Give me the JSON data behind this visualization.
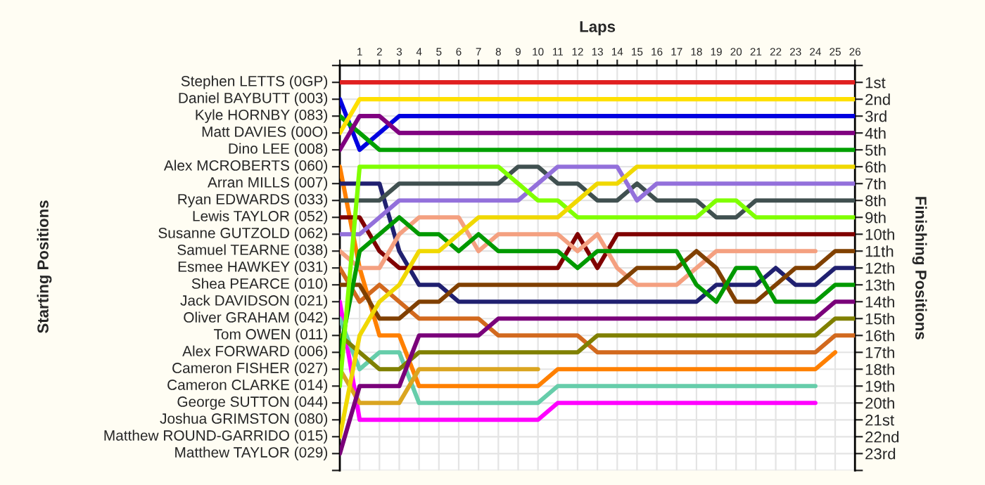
{
  "chart_data": {
    "type": "line",
    "xlabel": "Laps",
    "ylabel": "Finishing Positions",
    "annotations": [
      "Stephen LETTS (0GP)",
      "Daniel BAYBUTT (003)",
      "Kyle HORNBY (083)",
      "Matt DAVIES (00O)",
      "Dino LEE (008)",
      "Alex MCROBERTS (060)",
      "Arran MILLS (007)",
      "Ryan EDWARDS (033)",
      "Lewis TAYLOR (052)",
      "Susanne GUTZOLD (062)",
      "Samuel TEARNE (038)",
      "Esmee HAWKEY (031)",
      "Shea PEARCE (010)",
      "Jack DAVIDSON (021)",
      "Oliver GRAHAM (042)",
      "Tom OWEN (011)",
      "Alex FORWARD (006)",
      "Cameron FISHER (027)",
      "Cameron CLARKE (014)",
      "George SUTTON (044)",
      "Joshua GRIMSTON (080)",
      "Matthew ROUND-GARRIDO (015)",
      "Matthew TAYLOR (029)",
      "Starting Positions"
    ],
    "x": [
      0,
      1,
      2,
      3,
      4,
      5,
      6,
      7,
      8,
      9,
      10,
      11,
      12,
      13,
      14,
      15,
      16,
      17,
      18,
      19,
      20,
      21,
      22,
      23,
      24,
      25,
      26
    ],
    "xlim": [
      0,
      26
    ],
    "xticks": [
      {
        "value": 0,
        "label": null
      },
      1,
      2,
      3,
      4,
      5,
      6,
      7,
      8,
      9,
      10,
      11,
      12,
      13,
      14,
      15,
      16,
      17,
      18,
      19,
      20,
      21,
      22,
      23,
      24,
      25,
      26
    ],
    "ylim": [
      24,
      0
    ],
    "yticks": [
      {
        "value": 0,
        "label": null
      },
      {
        "value": 1,
        "label": "1st"
      },
      {
        "value": 2,
        "label": "2nd"
      },
      {
        "value": 3,
        "label": "3rd"
      },
      {
        "value": 4,
        "label": "4th"
      },
      {
        "value": 5,
        "label": "5th"
      },
      {
        "value": 6,
        "label": "6th"
      },
      {
        "value": 7,
        "label": "7th"
      },
      {
        "value": 8,
        "label": "8th"
      },
      {
        "value": 9,
        "label": "9th"
      },
      {
        "value": 10,
        "label": "10th"
      },
      {
        "value": 11,
        "label": "11th"
      },
      {
        "value": 12,
        "label": "12th"
      },
      {
        "value": 13,
        "label": "13th"
      },
      {
        "value": 14,
        "label": "14th"
      },
      {
        "value": 15,
        "label": "15th"
      },
      {
        "value": 16,
        "label": "16th"
      },
      {
        "value": 17,
        "label": "17th"
      },
      {
        "value": 18,
        "label": "18th"
      },
      {
        "value": 19,
        "label": "19th"
      },
      {
        "value": 20,
        "label": "20th"
      },
      {
        "value": 21,
        "label": "21st"
      },
      {
        "value": 22,
        "label": "22nd"
      },
      {
        "value": 23,
        "label": "23rd"
      },
      {
        "value": 24,
        "label": null
      }
    ],
    "grid": true,
    "series": [
      {
        "color": "#e02020",
        "values": [
          1,
          1,
          1,
          1,
          1,
          1,
          1,
          1,
          1,
          1,
          1,
          1,
          1,
          1,
          1,
          1,
          1,
          1,
          1,
          1,
          1,
          1,
          1,
          1,
          1,
          1,
          1
        ]
      },
      {
        "color": "#0000e0",
        "values": [
          2,
          5,
          4,
          3,
          3,
          3,
          3,
          3,
          3,
          3,
          3,
          3,
          3,
          3,
          3,
          3,
          3,
          3,
          3,
          3,
          3,
          3,
          3,
          3,
          3,
          3,
          3
        ]
      },
      {
        "color": "#00a000",
        "values": [
          3,
          4,
          5,
          5,
          5,
          5,
          5,
          5,
          5,
          5,
          5,
          5,
          5,
          5,
          5,
          5,
          5,
          5,
          5,
          5,
          5,
          5,
          5,
          5,
          5,
          5,
          5
        ]
      },
      {
        "color": "#ffe000",
        "values": [
          4,
          2,
          2,
          2,
          2,
          2,
          2,
          2,
          2,
          2,
          2,
          2,
          2,
          2,
          2,
          2,
          2,
          2,
          2,
          2,
          2,
          2,
          2,
          2,
          2,
          2,
          2
        ]
      },
      {
        "color": "#800080",
        "values": [
          5,
          3,
          3,
          4,
          4,
          4,
          4,
          4,
          4,
          4,
          4,
          4,
          4,
          4,
          4,
          4,
          4,
          4,
          4,
          4,
          4,
          4,
          4,
          4,
          4,
          4,
          4
        ]
      },
      {
        "color": "#ff8000",
        "values": [
          6,
          12,
          16,
          16,
          19,
          19,
          19,
          19,
          19,
          19,
          19,
          18,
          18,
          18,
          18,
          18,
          18,
          18,
          18,
          18,
          18,
          18,
          18,
          18,
          18,
          17,
          null
        ]
      },
      {
        "color": "#202070",
        "values": [
          7,
          7,
          7,
          11,
          13,
          13,
          14,
          14,
          14,
          14,
          14,
          14,
          14,
          14,
          14,
          14,
          14,
          14,
          14,
          13,
          13,
          13,
          12,
          13,
          13,
          12,
          12
        ]
      },
      {
        "color": "#405050",
        "values": [
          8,
          8,
          8,
          7,
          7,
          7,
          7,
          7,
          7,
          6,
          6,
          7,
          7,
          8,
          8,
          7,
          8,
          8,
          8,
          9,
          9,
          8,
          8,
          8,
          8,
          8,
          8
        ]
      },
      {
        "color": "#800000",
        "values": [
          9,
          9,
          11,
          12,
          12,
          12,
          12,
          12,
          12,
          12,
          12,
          12,
          10,
          12,
          10,
          10,
          10,
          10,
          10,
          10,
          10,
          10,
          10,
          10,
          10,
          10,
          10
        ]
      },
      {
        "color": "#9370db",
        "values": [
          10,
          10,
          9,
          8,
          8,
          8,
          8,
          8,
          8,
          8,
          7,
          6,
          6,
          6,
          6,
          8,
          7,
          7,
          7,
          7,
          7,
          7,
          7,
          7,
          7,
          7,
          7
        ]
      },
      {
        "color": "#f4a080",
        "values": [
          11,
          12,
          12,
          10,
          9,
          9,
          9,
          11,
          10,
          10,
          10,
          10,
          11,
          10,
          12,
          13,
          13,
          13,
          12,
          11,
          11,
          11,
          11,
          11,
          11,
          null,
          null
        ]
      },
      {
        "color": "#d2691e",
        "values": [
          12,
          14,
          13,
          14,
          15,
          15,
          15,
          15,
          16,
          16,
          16,
          16,
          16,
          17,
          17,
          17,
          17,
          17,
          17,
          17,
          17,
          17,
          17,
          17,
          17,
          16,
          16
        ]
      },
      {
        "color": "#804000",
        "values": [
          13,
          13,
          15,
          15,
          14,
          14,
          13,
          13,
          13,
          13,
          13,
          13,
          13,
          13,
          13,
          12,
          12,
          12,
          11,
          12,
          14,
          14,
          13,
          12,
          12,
          11,
          11
        ]
      },
      {
        "color": "#ff00ff",
        "values": [
          14,
          21,
          21,
          21,
          21,
          21,
          21,
          21,
          21,
          21,
          21,
          20,
          20,
          20,
          20,
          20,
          20,
          20,
          20,
          20,
          20,
          20,
          20,
          20,
          20,
          null,
          null
        ]
      },
      {
        "color": "#66cdaa",
        "values": [
          15,
          18,
          17,
          17,
          20,
          20,
          20,
          20,
          20,
          20,
          20,
          19,
          19,
          19,
          19,
          19,
          19,
          19,
          19,
          19,
          19,
          19,
          19,
          19,
          19,
          null,
          null
        ]
      },
      {
        "color": "#808000",
        "values": [
          16,
          17,
          18,
          18,
          17,
          17,
          17,
          17,
          17,
          17,
          17,
          17,
          17,
          16,
          16,
          16,
          16,
          16,
          16,
          16,
          16,
          16,
          16,
          16,
          16,
          15,
          15
        ]
      },
      {
        "color": "#009900",
        "values": [
          17,
          11,
          10,
          9,
          10,
          10,
          11,
          10,
          11,
          11,
          11,
          11,
          12,
          11,
          11,
          11,
          11,
          11,
          13,
          14,
          12,
          12,
          14,
          14,
          14,
          13,
          13
        ]
      },
      {
        "color": "#daa520",
        "values": [
          18,
          20,
          20,
          20,
          18,
          18,
          18,
          18,
          18,
          18,
          18,
          null,
          null,
          null,
          null,
          null,
          null,
          null,
          null,
          null,
          null,
          null,
          null,
          null,
          null,
          null,
          null
        ]
      },
      {
        "color": "#80ff00",
        "values": [
          19,
          6,
          6,
          6,
          6,
          6,
          6,
          6,
          6,
          7,
          8,
          8,
          9,
          9,
          9,
          9,
          9,
          9,
          9,
          8,
          8,
          9,
          9,
          9,
          9,
          9,
          9
        ]
      },
      {
        "color": "#f0d800",
        "values": [
          22,
          16,
          14,
          13,
          11,
          11,
          10,
          9,
          9,
          9,
          9,
          9,
          8,
          7,
          7,
          6,
          6,
          6,
          6,
          6,
          6,
          6,
          6,
          6,
          6,
          6,
          6
        ]
      },
      {
        "color": "#7a007a",
        "values": [
          23,
          19,
          19,
          19,
          16,
          16,
          16,
          16,
          15,
          15,
          15,
          15,
          15,
          15,
          15,
          15,
          15,
          15,
          15,
          15,
          15,
          15,
          15,
          15,
          15,
          14,
          14
        ]
      }
    ]
  }
}
